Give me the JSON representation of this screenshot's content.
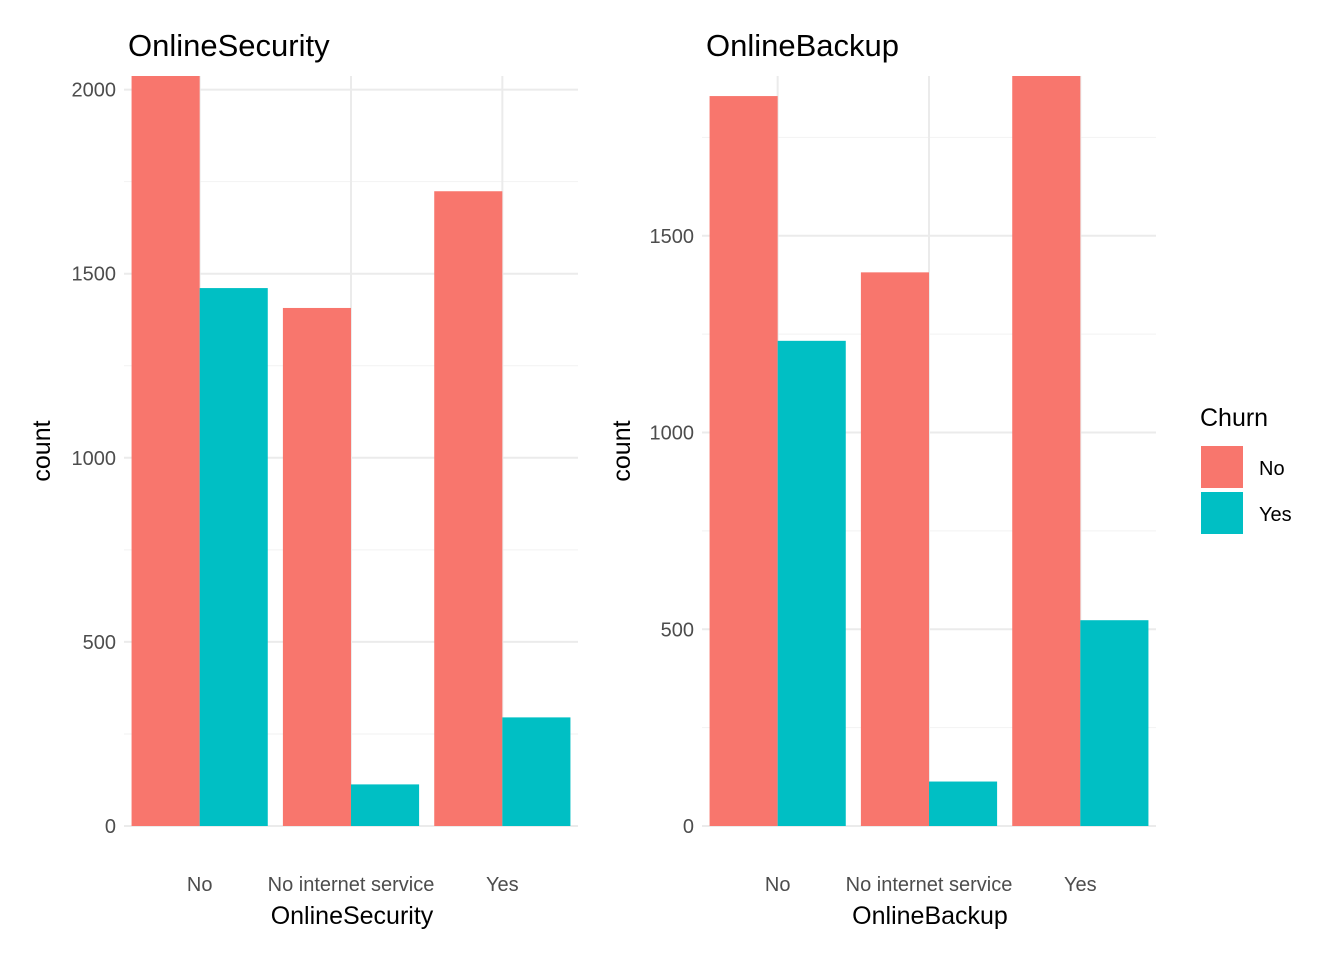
{
  "chart_data": [
    {
      "type": "bar",
      "title": "OnlineSecurity",
      "xlabel": "OnlineSecurity",
      "ylabel": "count",
      "categories": [
        "No",
        "No internet service",
        "Yes"
      ],
      "series": [
        {
          "name": "No",
          "values": [
            2037,
            1407,
            1724
          ]
        },
        {
          "name": "Yes",
          "values": [
            1461,
            113,
            295
          ]
        }
      ],
      "ylim": [
        0,
        2037
      ],
      "yticks": [
        0,
        500,
        1000,
        1500,
        2000
      ],
      "ytick_labels": [
        "0",
        "500",
        "1000",
        "1500",
        "2000"
      ],
      "grid": true
    },
    {
      "type": "bar",
      "title": "OnlineBackup",
      "xlabel": "OnlineBackup",
      "ylabel": "count",
      "categories": [
        "No",
        "No internet service",
        "Yes"
      ],
      "series": [
        {
          "name": "No",
          "values": [
            1855,
            1407,
            1906
          ]
        },
        {
          "name": "Yes",
          "values": [
            1233,
            113,
            523
          ]
        }
      ],
      "ylim": [
        0,
        1906
      ],
      "yticks": [
        0,
        500,
        1000,
        1500
      ],
      "ytick_labels": [
        "0",
        "500",
        "1000",
        "1500"
      ],
      "grid": true
    }
  ],
  "legend": {
    "title": "Churn",
    "position": "right",
    "items": [
      {
        "label": "No",
        "color": "#f8766d"
      },
      {
        "label": "Yes",
        "color": "#00bfc4"
      }
    ]
  },
  "colors": {
    "No": "#f8766d",
    "Yes": "#00bfc4"
  }
}
